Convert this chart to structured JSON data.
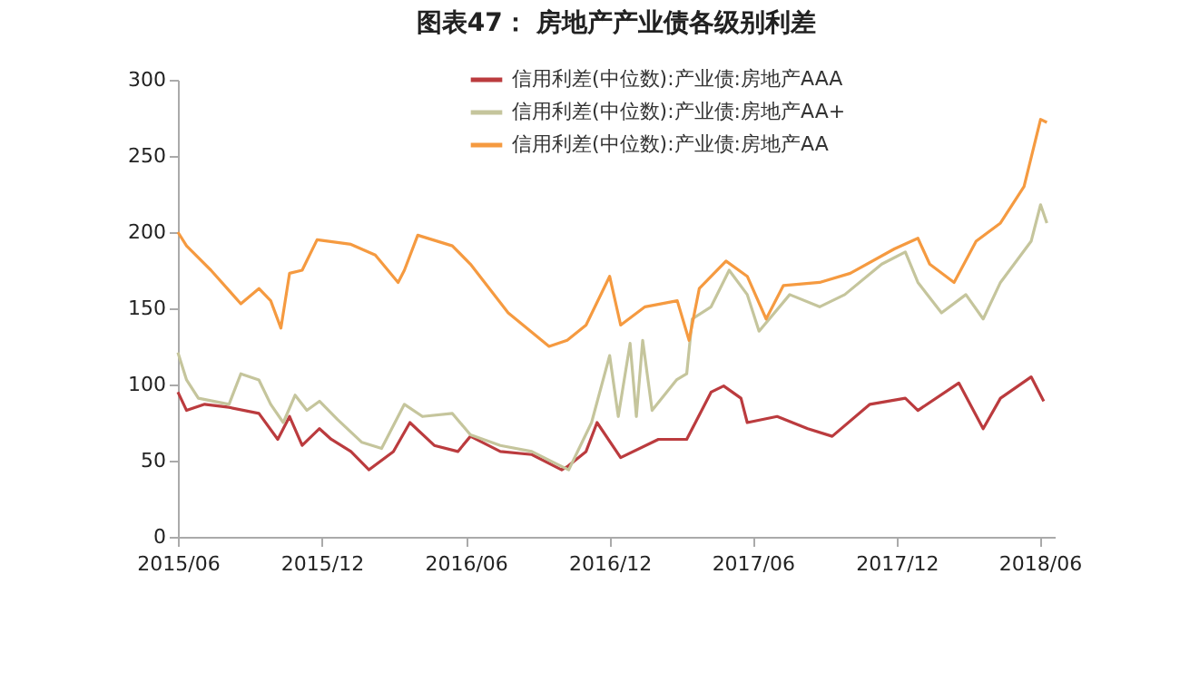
{
  "chart_data": {
    "type": "line",
    "title": "图表47：    房地产产业债各级别利差",
    "xlim": [
      "2015-06-01",
      "2018-06-20"
    ],
    "xticks": [
      {
        "value": "2015-06",
        "label": "2015/06"
      },
      {
        "value": "2015-12",
        "label": "2015/12"
      },
      {
        "value": "2016-06",
        "label": "2016/06"
      },
      {
        "value": "2016-12",
        "label": "2016/12"
      },
      {
        "value": "2017-06",
        "label": "2017/06"
      },
      {
        "value": "2017-12",
        "label": "2017/12"
      },
      {
        "value": "2018-06",
        "label": "2018/06"
      }
    ],
    "ylim": [
      0,
      300
    ],
    "yticks": [
      0,
      50,
      100,
      150,
      200,
      250,
      300
    ],
    "legend": "top",
    "grid": false,
    "line_style": "solid",
    "series": [
      {
        "name": "信用利差(中位数):产业债:房地产AAA",
        "color": "#bb3b3e",
        "x": [
          "2015-06-01",
          "2015-06-12",
          "2015-07-05",
          "2015-08-05",
          "2015-09-12",
          "2015-10-06",
          "2015-10-21",
          "2015-11-06",
          "2015-11-28",
          "2015-12-13",
          "2016-01-07",
          "2016-01-30",
          "2016-03-01",
          "2016-03-22",
          "2016-04-22",
          "2016-05-22",
          "2016-06-07",
          "2016-07-15",
          "2016-08-24",
          "2016-10-01",
          "2016-10-08",
          "2016-11-01",
          "2016-11-15",
          "2016-12-15",
          "2017-02-01",
          "2017-03-09",
          "2017-04-09",
          "2017-04-25",
          "2017-05-17",
          "2017-05-25",
          "2017-07-02",
          "2017-08-10",
          "2017-09-10",
          "2017-10-28",
          "2017-12-12",
          "2017-12-28",
          "2018-02-18",
          "2018-03-21",
          "2018-04-12",
          "2018-05-21",
          "2018-06-06"
        ],
        "values": [
          95,
          83,
          87,
          85,
          81,
          64,
          79,
          60,
          71,
          64,
          56,
          44,
          56,
          75,
          60,
          56,
          66,
          56,
          54,
          44,
          46,
          56,
          75,
          52,
          64,
          64,
          95,
          99,
          91,
          75,
          79,
          71,
          66,
          87,
          91,
          83,
          101,
          71,
          91,
          105,
          89
        ]
      },
      {
        "name": "信用利差(中位数):产业债:房地产AA+",
        "color": "#c5c59c",
        "x": [
          "2015-06-01",
          "2015-06-12",
          "2015-06-27",
          "2015-08-05",
          "2015-08-20",
          "2015-09-12",
          "2015-09-27",
          "2015-10-13",
          "2015-10-28",
          "2015-11-12",
          "2015-11-28",
          "2015-12-21",
          "2016-01-21",
          "2016-02-15",
          "2016-03-15",
          "2016-04-07",
          "2016-05-15",
          "2016-06-07",
          "2016-07-15",
          "2016-08-24",
          "2016-09-24",
          "2016-10-10",
          "2016-11-08",
          "2016-12-01",
          "2016-12-12",
          "2016-12-27",
          "2017-01-04",
          "2017-01-12",
          "2017-01-24",
          "2017-02-24",
          "2017-03-09",
          "2017-03-16",
          "2017-04-09",
          "2017-05-02",
          "2017-05-25",
          "2017-06-09",
          "2017-07-18",
          "2017-08-25",
          "2017-09-26",
          "2017-11-12",
          "2017-12-12",
          "2017-12-28",
          "2018-01-27",
          "2018-02-27",
          "2018-03-21",
          "2018-04-12",
          "2018-05-21",
          "2018-06-02",
          "2018-06-10"
        ],
        "values": [
          121,
          103,
          91,
          87,
          107,
          103,
          87,
          75,
          93,
          83,
          89,
          77,
          62,
          58,
          87,
          79,
          81,
          67,
          60,
          56,
          48,
          44,
          75,
          119,
          79,
          127,
          79,
          129,
          83,
          103,
          107,
          143,
          151,
          175,
          159,
          135,
          159,
          151,
          159,
          179,
          187,
          167,
          147,
          159,
          143,
          167,
          194,
          218,
          206
        ]
      },
      {
        "name": "信用利差(中位数):产业债:房地产AA",
        "color": "#f59a40",
        "x": [
          "2015-06-01",
          "2015-06-12",
          "2015-07-13",
          "2015-08-20",
          "2015-09-12",
          "2015-09-27",
          "2015-10-10",
          "2015-10-21",
          "2015-11-06",
          "2015-11-25",
          "2016-01-07",
          "2016-02-07",
          "2016-03-07",
          "2016-03-15",
          "2016-04-01",
          "2016-05-15",
          "2016-06-07",
          "2016-07-25",
          "2016-09-15",
          "2016-10-08",
          "2016-11-01",
          "2016-12-01",
          "2016-12-15",
          "2017-01-15",
          "2017-02-25",
          "2017-03-12",
          "2017-03-25",
          "2017-04-28",
          "2017-05-25",
          "2017-06-18",
          "2017-07-10",
          "2017-08-25",
          "2017-10-03",
          "2017-11-28",
          "2017-12-28",
          "2018-01-12",
          "2018-02-12",
          "2018-03-12",
          "2018-04-12",
          "2018-05-12",
          "2018-06-02",
          "2018-06-10"
        ],
        "values": [
          200,
          191,
          175,
          153,
          163,
          155,
          137,
          173,
          175,
          195,
          192,
          185,
          167,
          175,
          198,
          191,
          179,
          147,
          125,
          129,
          139,
          171,
          139,
          151,
          155,
          129,
          163,
          181,
          171,
          143,
          165,
          167,
          173,
          189,
          196,
          179,
          167,
          194,
          206,
          230,
          274,
          272
        ]
      }
    ]
  }
}
